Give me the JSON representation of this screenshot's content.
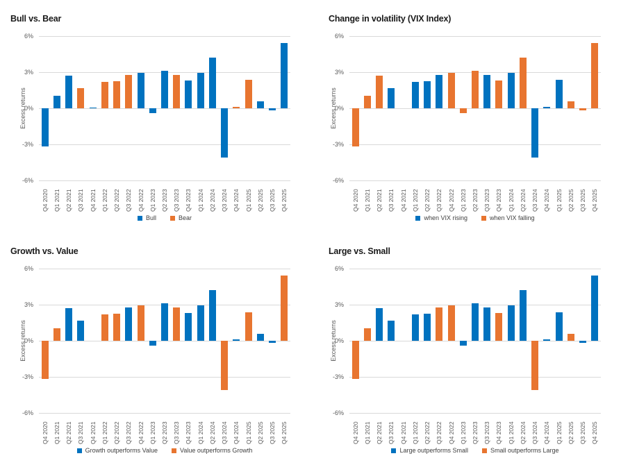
{
  "page": {
    "background": "#ffffff"
  },
  "colors": {
    "bar_blue": "#0072BF",
    "bar_orange": "#E87530",
    "gridline": "#D9D9D9",
    "axis_text": "#595959",
    "legend_text": "#404040",
    "title_text": "#1A1A1A"
  },
  "chart_data": [
    {
      "type": "bar",
      "title": "Bull vs. Bear",
      "ylabel": "Excess returns",
      "ylim": [
        -6,
        6
      ],
      "yticks": [
        "6%",
        "3%",
        "0%",
        "-3%",
        "-6%"
      ],
      "grid": true,
      "legend_position": "bottom",
      "categories": [
        "Q4 2020",
        "Q1 2021",
        "Q2 2021",
        "Q3 2021",
        "Q4 2021",
        "Q1 2022",
        "Q2 2022",
        "Q3 2022",
        "Q4 2022",
        "Q1 2023",
        "Q2 2023",
        "Q3 2023",
        "Q4 2023",
        "Q1 2024",
        "Q2 2024",
        "Q3 2024",
        "Q4 2024",
        "Q1 2025",
        "Q2 2025",
        "Q3 2025",
        "Q4 2025"
      ],
      "series": [
        {
          "name": "Bull",
          "color": "#0072BF",
          "values": [
            -3.15,
            1.05,
            2.7,
            null,
            0.08,
            null,
            null,
            null,
            2.95,
            -0.4,
            3.1,
            null,
            2.3,
            2.95,
            4.2,
            -4.1,
            null,
            null,
            0.6,
            -0.2,
            5.45
          ]
        },
        {
          "name": "Bear",
          "color": "#E87530",
          "values": [
            null,
            null,
            null,
            1.7,
            null,
            2.2,
            2.25,
            2.75,
            null,
            null,
            null,
            2.75,
            null,
            null,
            null,
            null,
            0.1,
            2.35,
            null,
            null,
            null
          ]
        }
      ]
    },
    {
      "type": "bar",
      "title": "Change in volatility (VIX Index)",
      "ylabel": "Excess returns",
      "ylim": [
        -6,
        6
      ],
      "yticks": [
        "6%",
        "3%",
        "0%",
        "-3%",
        "-6%"
      ],
      "grid": true,
      "legend_position": "bottom",
      "categories": [
        "Q4 2020",
        "Q1 2021",
        "Q2 2021",
        "Q3 2021",
        "Q4 2021",
        "Q1 2022",
        "Q2 2022",
        "Q3 2022",
        "Q4 2022",
        "Q1 2023",
        "Q2 2023",
        "Q3 2023",
        "Q4 2023",
        "Q1 2024",
        "Q2 2024",
        "Q3 2024",
        "Q4 2024",
        "Q1 2025",
        "Q2 2025",
        "Q3 2025",
        "Q4 2025"
      ],
      "series": [
        {
          "name": "when VIX rising",
          "color": "#0072BF",
          "values": [
            null,
            null,
            null,
            1.7,
            null,
            2.2,
            2.25,
            2.75,
            null,
            null,
            null,
            2.75,
            null,
            2.95,
            null,
            -4.1,
            0.1,
            2.35,
            null,
            null,
            null
          ]
        },
        {
          "name": "when VIX falling",
          "color": "#E87530",
          "values": [
            -3.15,
            1.05,
            2.7,
            null,
            null,
            null,
            null,
            null,
            2.95,
            -0.4,
            3.1,
            null,
            2.3,
            null,
            4.2,
            null,
            null,
            null,
            0.6,
            -0.2,
            5.45
          ]
        }
      ]
    },
    {
      "type": "bar",
      "title": "Growth vs. Value",
      "ylabel": "Excess returns",
      "ylim": [
        -6,
        6
      ],
      "yticks": [
        "6%",
        "3%",
        "0%",
        "-3%",
        "-6%"
      ],
      "grid": true,
      "legend_position": "bottom",
      "categories": [
        "Q4 2020",
        "Q1 2021",
        "Q2 2021",
        "Q3 2021",
        "Q4 2021",
        "Q1 2022",
        "Q2 2022",
        "Q3 2022",
        "Q4 2022",
        "Q1 2023",
        "Q2 2023",
        "Q3 2023",
        "Q4 2023",
        "Q1 2024",
        "Q2 2024",
        "Q3 2024",
        "Q4 2024",
        "Q1 2025",
        "Q2 2025",
        "Q3 2025",
        "Q4 2025"
      ],
      "series": [
        {
          "name": "Growth outperforms Value",
          "color": "#0072BF",
          "values": [
            null,
            null,
            2.7,
            1.7,
            null,
            null,
            null,
            2.75,
            null,
            -0.4,
            3.1,
            null,
            2.3,
            2.95,
            4.2,
            null,
            0.1,
            null,
            0.6,
            -0.2,
            null
          ]
        },
        {
          "name": "Value outperforms Growth",
          "color": "#E87530",
          "values": [
            -3.15,
            1.05,
            null,
            null,
            null,
            2.2,
            2.25,
            null,
            2.95,
            null,
            null,
            2.75,
            null,
            null,
            null,
            -4.1,
            null,
            2.35,
            null,
            null,
            5.45
          ]
        }
      ]
    },
    {
      "type": "bar",
      "title": "Large vs. Small",
      "ylabel": "Excess returns",
      "ylim": [
        -6,
        6
      ],
      "yticks": [
        "6%",
        "3%",
        "0%",
        "-3%",
        "-6%"
      ],
      "grid": true,
      "legend_position": "bottom",
      "categories": [
        "Q4 2020",
        "Q1 2021",
        "Q2 2021",
        "Q3 2021",
        "Q4 2021",
        "Q1 2022",
        "Q2 2022",
        "Q3 2022",
        "Q4 2022",
        "Q1 2023",
        "Q2 2023",
        "Q3 2023",
        "Q4 2023",
        "Q1 2024",
        "Q2 2024",
        "Q3 2024",
        "Q4 2024",
        "Q1 2025",
        "Q2 2025",
        "Q3 2025",
        "Q4 2025"
      ],
      "series": [
        {
          "name": "Large outperforms Small",
          "color": "#0072BF",
          "values": [
            null,
            null,
            2.7,
            1.7,
            null,
            2.2,
            2.25,
            null,
            null,
            -0.4,
            3.1,
            2.75,
            null,
            2.95,
            4.2,
            null,
            0.1,
            2.35,
            null,
            -0.2,
            5.45
          ]
        },
        {
          "name": "Small outperforms Large",
          "color": "#E87530",
          "values": [
            -3.15,
            1.05,
            null,
            null,
            null,
            null,
            null,
            2.75,
            2.95,
            null,
            null,
            null,
            2.3,
            null,
            null,
            -4.1,
            null,
            null,
            0.6,
            null,
            null
          ]
        }
      ]
    }
  ]
}
